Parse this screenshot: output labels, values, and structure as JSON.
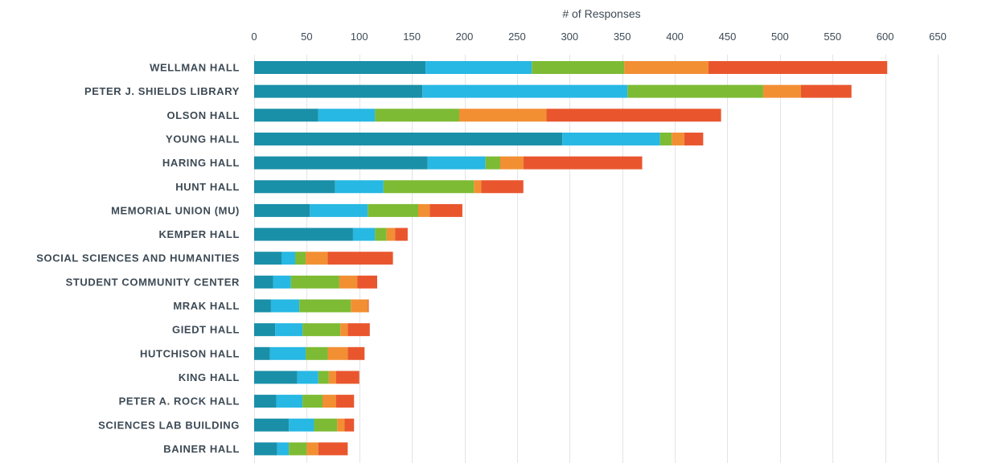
{
  "chart_data": {
    "type": "bar",
    "orientation": "horizontal",
    "stacked": true,
    "title": "",
    "xlabel": "# of Responses",
    "ylabel": "",
    "xlim": [
      0,
      650
    ],
    "x_ticks": [
      0,
      50,
      100,
      150,
      200,
      250,
      300,
      350,
      400,
      450,
      500,
      550,
      600,
      650
    ],
    "x_axis_position": "top",
    "grid": true,
    "legend": "none",
    "categories": [
      "WELLMAN HALL",
      "PETER J. SHIELDS LIBRARY",
      "OLSON HALL",
      "YOUNG HALL",
      "HARING HALL",
      "HUNT HALL",
      "MEMORIAL UNION (MU)",
      "KEMPER HALL",
      "SOCIAL SCIENCES AND HUMANITIES",
      "STUDENT COMMUNITY CENTER",
      "MRAK HALL",
      "GIEDT HALL",
      "HUTCHISON HALL",
      "KING HALL",
      "PETER A. ROCK HALL",
      "SCIENCES LAB BUILDING",
      "BAINER HALL"
    ],
    "series": [
      {
        "color": "#1a8fa8",
        "values": [
          163,
          160,
          61,
          293,
          165,
          77,
          53,
          94,
          26,
          18,
          16,
          20,
          15,
          41,
          21,
          33,
          22
        ]
      },
      {
        "color": "#27b8e3",
        "values": [
          101,
          195,
          54,
          93,
          55,
          46,
          55,
          21,
          13,
          17,
          27,
          26,
          34,
          20,
          25,
          24,
          11
        ]
      },
      {
        "color": "#7dbb34",
        "values": [
          88,
          129,
          80,
          11,
          14,
          86,
          48,
          11,
          10,
          46,
          49,
          36,
          21,
          10,
          19,
          22,
          17
        ]
      },
      {
        "color": "#f28f33",
        "values": [
          80,
          36,
          83,
          12,
          22,
          7,
          11,
          8,
          21,
          17,
          16,
          7,
          19,
          7,
          13,
          7,
          11
        ]
      },
      {
        "color": "#e9562e",
        "values": [
          170,
          48,
          166,
          18,
          113,
          40,
          31,
          12,
          62,
          19,
          1,
          21,
          16,
          22,
          17,
          9,
          28
        ]
      }
    ]
  }
}
